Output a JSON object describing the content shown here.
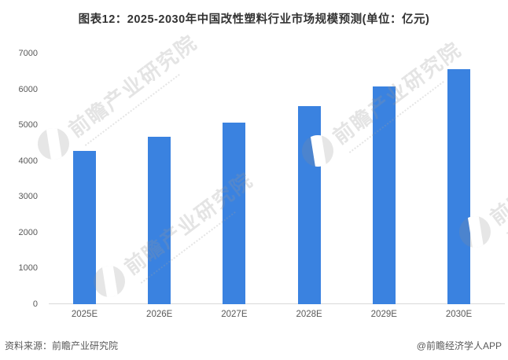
{
  "title": "图表12：2025-2030年中国改性塑料行业市场规模预测(单位：亿元)",
  "footer": {
    "source": "资料来源：前瞻产业研究院",
    "credit": "@前瞻经济学人APP"
  },
  "watermark": {
    "text": "前瞻产业研究院",
    "logo_icon": "qianzhan-circle-logo"
  },
  "colors": {
    "bar": "#3a82e0",
    "axis_text": "#595959",
    "title_text": "#333333",
    "axis_line": "#d9d9d9",
    "watermark": "rgba(150,150,150,0.26)",
    "background": "#ffffff"
  },
  "chart_data": {
    "type": "bar",
    "categories": [
      "2025E",
      "2026E",
      "2027E",
      "2028E",
      "2029E",
      "2030E"
    ],
    "values": [
      4280,
      4680,
      5070,
      5530,
      6080,
      6570
    ],
    "title": "图表12：2025-2030年中国改性塑料行业市场规模预测(单位：亿元)",
    "xlabel": "",
    "ylabel": "",
    "unit": "亿元",
    "ylim": [
      0,
      7000
    ],
    "yticks": [
      0,
      1000,
      2000,
      3000,
      4000,
      5000,
      6000,
      7000
    ],
    "grid": false,
    "legend": null,
    "bar_color": "#3a82e0"
  }
}
